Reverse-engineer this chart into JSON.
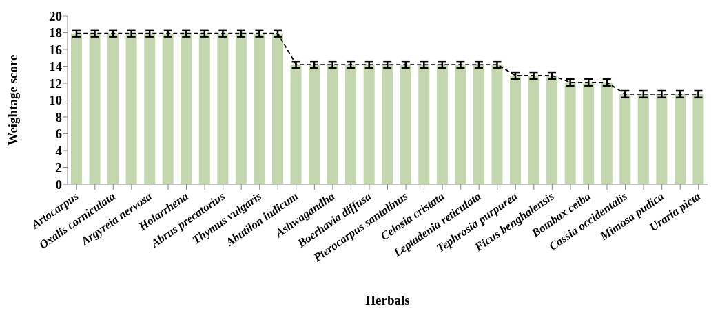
{
  "chart_data": {
    "type": "bar",
    "xlabel": "Herbals",
    "ylabel": "Weightage score",
    "categories": [
      "Artocarpus",
      null,
      "Oxalis corniculata",
      null,
      "Argyreia nervosa",
      null,
      "Holarrhena",
      null,
      "Abrus precatorius",
      null,
      "Thymus vulgaris",
      null,
      "Abutilon indicum",
      null,
      "Ashwagandha",
      null,
      "Boerhavia diffusa",
      null,
      "Pterocarpus santalinus",
      null,
      "Celosia cristata",
      null,
      "Leptadenia reticulata",
      null,
      "Tephrosia purpurea",
      null,
      "Ficus benghalensis",
      null,
      "Bombax ceiba",
      null,
      "Cassia occidentalis",
      null,
      "Mimosa pudica",
      null,
      "Uraria picta"
    ],
    "series": [
      {
        "color": "#c4d6ad",
        "values": [
          17.9,
          17.9,
          17.9,
          17.9,
          17.9,
          17.9,
          17.9,
          17.9,
          17.9,
          17.9,
          17.9,
          17.9,
          14.2,
          14.2,
          14.2,
          14.2,
          14.2,
          14.2,
          14.2,
          14.2,
          14.2,
          14.2,
          14.2,
          14.2,
          12.9,
          12.9,
          12.9,
          12.1,
          12.1,
          12.1,
          10.7,
          10.7,
          10.7,
          10.7,
          10.7
        ],
        "errors": [
          0.4,
          0.4,
          0.4,
          0.4,
          0.4,
          0.4,
          0.4,
          0.4,
          0.4,
          0.4,
          0.4,
          0.4,
          0.4,
          0.4,
          0.4,
          0.4,
          0.4,
          0.4,
          0.4,
          0.4,
          0.4,
          0.4,
          0.4,
          0.4,
          0.4,
          0.4,
          0.4,
          0.4,
          0.4,
          0.4,
          0.4,
          0.4,
          0.4,
          0.4,
          0.4
        ]
      },
      {
        "type": "line",
        "color": "#000000",
        "line_style": "dashed",
        "marker": "none",
        "values": [
          17.9,
          17.9,
          17.9,
          17.9,
          17.9,
          17.9,
          17.9,
          17.9,
          17.9,
          17.9,
          17.9,
          17.9,
          14.2,
          14.2,
          14.2,
          14.2,
          14.2,
          14.2,
          14.2,
          14.2,
          14.2,
          14.2,
          14.2,
          14.2,
          12.9,
          12.9,
          12.9,
          12.1,
          12.1,
          12.1,
          10.7,
          10.7,
          10.7,
          10.7,
          10.7
        ]
      }
    ],
    "ylim": [
      0,
      20
    ],
    "yticks": [
      0,
      2,
      4,
      6,
      8,
      10,
      12,
      14,
      16,
      18,
      20
    ]
  }
}
